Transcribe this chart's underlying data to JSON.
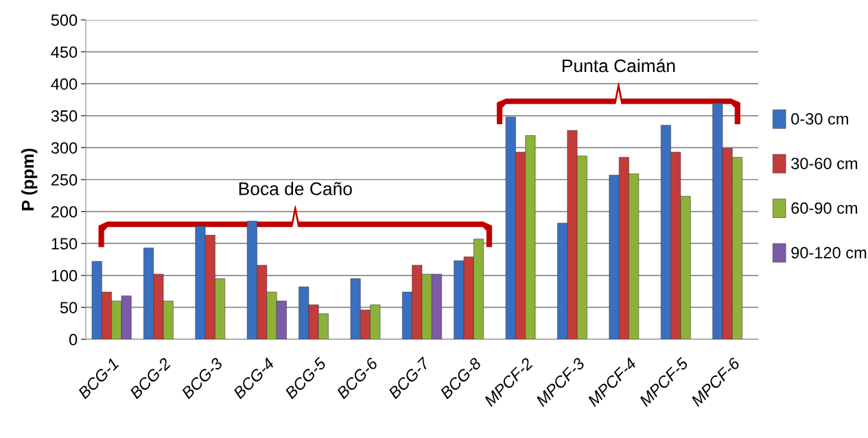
{
  "chart_data": {
    "type": "bar",
    "ylabel": "P (ppm)",
    "categories": [
      "BCG-1",
      "BCG-2",
      "BCG-3",
      "BCG-4",
      "BCG-5",
      "BCG-6",
      "BCG-7",
      "BCG-8",
      "MPCF-2",
      "MPCF-3",
      "MPCF-4",
      "MPCF-5",
      "MPCF-6"
    ],
    "series": [
      {
        "name": "0-30 cm",
        "color": "#3a6fc0",
        "values": [
          122,
          143,
          177,
          185,
          82,
          95,
          74,
          123,
          348,
          182,
          257,
          335,
          370
        ]
      },
      {
        "name": "30-60 cm",
        "color": "#c43c39",
        "values": [
          74,
          102,
          163,
          116,
          54,
          46,
          116,
          129,
          293,
          327,
          285,
          293,
          299
        ]
      },
      {
        "name": "60-90 cm",
        "color": "#8db23a",
        "values": [
          60,
          60,
          95,
          74,
          40,
          54,
          102,
          157,
          319,
          287,
          259,
          224,
          285
        ]
      },
      {
        "name": "90-120 cm",
        "color": "#7d5aa6",
        "values": [
          68,
          null,
          null,
          60,
          null,
          null,
          102,
          null,
          null,
          null,
          null,
          null,
          null
        ]
      }
    ],
    "ylim": [
      0,
      500
    ],
    "yticks": [
      0,
      50,
      100,
      150,
      200,
      250,
      300,
      350,
      400,
      450,
      500
    ],
    "grid": "y",
    "legend": "right",
    "annotations": [
      "Boca de Caño",
      "Punta Caimán"
    ]
  }
}
